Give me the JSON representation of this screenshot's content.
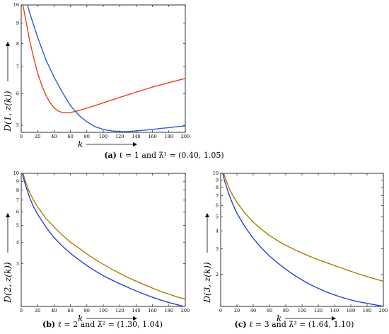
{
  "chart_data": [
    {
      "type": "line",
      "panel": "a",
      "caption_tag": "(a)",
      "caption_text": "ℓ = 1 and λ̄¹ = (0.40, 1.05)",
      "xlabel": "k",
      "ylabel": "D(1, z(k))",
      "xlim": [
        0,
        200
      ],
      "ylim": [
        4.8,
        10
      ],
      "yscale": "log",
      "xticks": [
        0,
        20,
        40,
        60,
        80,
        100,
        120,
        140,
        160,
        180,
        200
      ],
      "yticks": [
        5,
        6,
        7,
        8,
        9,
        10
      ],
      "grid": false,
      "series": [
        {
          "color": "#e8411a",
          "x": [
            0,
            5,
            10,
            15,
            20,
            25,
            30,
            35,
            40,
            45,
            50,
            55,
            60,
            70,
            80,
            90,
            100,
            110,
            120,
            130,
            140,
            150,
            160,
            170,
            180,
            190,
            200
          ],
          "y": [
            10.5,
            9.3,
            8.2,
            7.4,
            6.75,
            6.3,
            5.95,
            5.7,
            5.53,
            5.43,
            5.38,
            5.37,
            5.38,
            5.44,
            5.52,
            5.6,
            5.69,
            5.78,
            5.87,
            5.96,
            6.05,
            6.14,
            6.23,
            6.31,
            6.39,
            6.47,
            6.55
          ]
        },
        {
          "color": "#1f5fd6",
          "x": [
            0,
            10,
            20,
            30,
            40,
            50,
            60,
            70,
            80,
            90,
            100,
            110,
            120,
            130,
            140,
            150,
            160,
            170,
            180,
            190,
            200
          ],
          "y": [
            11.5,
            9.6,
            8.3,
            7.3,
            6.6,
            6.05,
            5.6,
            5.3,
            5.1,
            4.96,
            4.88,
            4.84,
            4.82,
            4.82,
            4.84,
            4.86,
            4.88,
            4.91,
            4.93,
            4.96,
            4.98
          ]
        }
      ]
    },
    {
      "type": "line",
      "panel": "b",
      "caption_tag": "(b)",
      "caption_text": "ℓ = 2 and λ̄² = (1.30, 1.04)",
      "xlabel": "k",
      "ylabel": "D(2, z(k))",
      "xlim": [
        0,
        200
      ],
      "ylim": [
        1.7,
        10
      ],
      "yscale": "log",
      "xticks": [
        0,
        20,
        40,
        60,
        80,
        100,
        120,
        140,
        160,
        180,
        200
      ],
      "yticks": [
        3,
        4,
        5,
        6,
        7,
        8,
        9,
        10
      ],
      "grid": false,
      "series": [
        {
          "color": "#b07a00",
          "x": [
            0,
            5,
            10,
            15,
            20,
            30,
            40,
            50,
            60,
            70,
            80,
            90,
            100,
            110,
            120,
            130,
            140,
            150,
            160,
            170,
            180,
            190,
            200
          ],
          "y": [
            11,
            9.0,
            7.8,
            7.0,
            6.4,
            5.5,
            4.9,
            4.4,
            4.0,
            3.7,
            3.42,
            3.18,
            2.98,
            2.8,
            2.64,
            2.5,
            2.38,
            2.27,
            2.17,
            2.08,
            2.0,
            1.93,
            1.87
          ]
        },
        {
          "color": "#2a3fd8",
          "x": [
            0,
            5,
            10,
            15,
            20,
            30,
            40,
            50,
            60,
            70,
            80,
            90,
            100,
            110,
            120,
            130,
            140,
            150,
            160,
            170,
            180,
            190,
            200
          ],
          "y": [
            10.5,
            8.6,
            7.3,
            6.4,
            5.8,
            4.9,
            4.25,
            3.8,
            3.45,
            3.17,
            2.93,
            2.73,
            2.56,
            2.42,
            2.3,
            2.19,
            2.09,
            2.0,
            1.92,
            1.85,
            1.79,
            1.74,
            1.69
          ]
        }
      ]
    },
    {
      "type": "line",
      "panel": "c",
      "caption_tag": "(c)",
      "caption_text": "ℓ = 3 and λ̄³ = (1.64, 1.10)",
      "xlabel": "k",
      "ylabel": "D(3, z(k))",
      "xlim": [
        0,
        200
      ],
      "ylim": [
        1.2,
        10
      ],
      "yscale": "log",
      "xticks": [
        0,
        20,
        40,
        60,
        80,
        100,
        120,
        140,
        160,
        180,
        200
      ],
      "yticks": [
        2,
        3,
        4,
        5,
        6,
        7,
        8,
        9,
        10
      ],
      "grid": false,
      "series": [
        {
          "color": "#b07a00",
          "x": [
            0,
            5,
            10,
            15,
            20,
            30,
            40,
            50,
            60,
            70,
            80,
            90,
            100,
            110,
            120,
            130,
            140,
            150,
            160,
            170,
            180,
            190,
            200
          ],
          "y": [
            12,
            9.5,
            8.0,
            7.0,
            6.3,
            5.3,
            4.6,
            4.1,
            3.72,
            3.42,
            3.18,
            2.98,
            2.81,
            2.66,
            2.53,
            2.41,
            2.3,
            2.2,
            2.1,
            2.01,
            1.93,
            1.86,
            1.79
          ]
        },
        {
          "color": "#2a3fd8",
          "x": [
            0,
            5,
            10,
            15,
            20,
            30,
            40,
            50,
            60,
            70,
            80,
            90,
            100,
            110,
            120,
            130,
            140,
            150,
            160,
            170,
            180,
            190,
            200
          ],
          "y": [
            11.5,
            8.8,
            7.2,
            6.1,
            5.3,
            4.25,
            3.55,
            3.05,
            2.68,
            2.4,
            2.17,
            1.98,
            1.83,
            1.7,
            1.6,
            1.51,
            1.44,
            1.38,
            1.33,
            1.29,
            1.26,
            1.23,
            1.2
          ]
        }
      ]
    }
  ]
}
